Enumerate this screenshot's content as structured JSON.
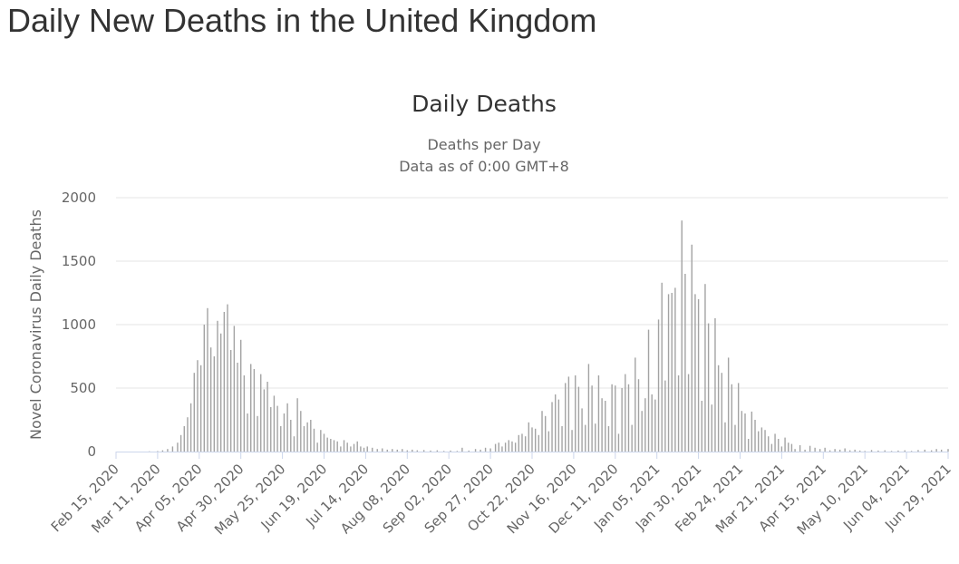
{
  "page": {
    "heading": "Daily New Deaths in the United Kingdom"
  },
  "chart_data": {
    "type": "bar",
    "title": "Daily Deaths",
    "subtitle": "Deaths per Day",
    "subtitle2": "Data as of 0:00 GMT+8",
    "xlabel": "",
    "ylabel": "Novel Coronavirus Daily Deaths",
    "ylim": [
      0,
      2000
    ],
    "yticks": [
      0,
      500,
      1000,
      1500,
      2000
    ],
    "grid": true,
    "legend": "none",
    "bar_color": "#a3a3a3",
    "grid_color": "#e6e6e6",
    "axis_color": "#ccd6eb",
    "x_start": "2020-02-15",
    "x_end": "2021-06-29",
    "xtick_labels": [
      "Feb 15, 2020",
      "Mar 11, 2020",
      "Apr 05, 2020",
      "Apr 30, 2020",
      "May 25, 2020",
      "Jun 19, 2020",
      "Jul 14, 2020",
      "Aug 08, 2020",
      "Sep 02, 2020",
      "Sep 27, 2020",
      "Oct 22, 2020",
      "Nov 16, 2020",
      "Dec 11, 2020",
      "Jan 05, 2021",
      "Jan 30, 2021",
      "Feb 24, 2021",
      "Mar 21, 2021",
      "Apr 15, 2021",
      "May 10, 2021",
      "Jun 04, 2021",
      "Jun 29, 2021"
    ],
    "series": [
      {
        "values": [
          {
            "date": "2020-02-15",
            "value": 0
          },
          {
            "date": "2020-02-20",
            "value": 0
          },
          {
            "date": "2020-02-25",
            "value": 0
          },
          {
            "date": "2020-03-01",
            "value": 0
          },
          {
            "date": "2020-03-06",
            "value": 2
          },
          {
            "date": "2020-03-11",
            "value": 4
          },
          {
            "date": "2020-03-14",
            "value": 10
          },
          {
            "date": "2020-03-17",
            "value": 20
          },
          {
            "date": "2020-03-20",
            "value": 40
          },
          {
            "date": "2020-03-23",
            "value": 70
          },
          {
            "date": "2020-03-25",
            "value": 130
          },
          {
            "date": "2020-03-27",
            "value": 200
          },
          {
            "date": "2020-03-29",
            "value": 270
          },
          {
            "date": "2020-03-31",
            "value": 380
          },
          {
            "date": "2020-04-02",
            "value": 620
          },
          {
            "date": "2020-04-04",
            "value": 720
          },
          {
            "date": "2020-04-06",
            "value": 680
          },
          {
            "date": "2020-04-08",
            "value": 1000
          },
          {
            "date": "2020-04-10",
            "value": 1130
          },
          {
            "date": "2020-04-12",
            "value": 820
          },
          {
            "date": "2020-04-14",
            "value": 750
          },
          {
            "date": "2020-04-16",
            "value": 1030
          },
          {
            "date": "2020-04-18",
            "value": 930
          },
          {
            "date": "2020-04-20",
            "value": 1100
          },
          {
            "date": "2020-04-22",
            "value": 1160
          },
          {
            "date": "2020-04-24",
            "value": 800
          },
          {
            "date": "2020-04-26",
            "value": 990
          },
          {
            "date": "2020-04-28",
            "value": 700
          },
          {
            "date": "2020-04-30",
            "value": 880
          },
          {
            "date": "2020-05-02",
            "value": 600
          },
          {
            "date": "2020-05-04",
            "value": 300
          },
          {
            "date": "2020-05-06",
            "value": 690
          },
          {
            "date": "2020-05-08",
            "value": 650
          },
          {
            "date": "2020-05-10",
            "value": 280
          },
          {
            "date": "2020-05-12",
            "value": 610
          },
          {
            "date": "2020-05-14",
            "value": 490
          },
          {
            "date": "2020-05-16",
            "value": 550
          },
          {
            "date": "2020-05-18",
            "value": 350
          },
          {
            "date": "2020-05-20",
            "value": 440
          },
          {
            "date": "2020-05-22",
            "value": 360
          },
          {
            "date": "2020-05-24",
            "value": 200
          },
          {
            "date": "2020-05-26",
            "value": 300
          },
          {
            "date": "2020-05-28",
            "value": 380
          },
          {
            "date": "2020-05-30",
            "value": 250
          },
          {
            "date": "2020-06-01",
            "value": 120
          },
          {
            "date": "2020-06-03",
            "value": 420
          },
          {
            "date": "2020-06-05",
            "value": 320
          },
          {
            "date": "2020-06-07",
            "value": 200
          },
          {
            "date": "2020-06-09",
            "value": 230
          },
          {
            "date": "2020-06-11",
            "value": 250
          },
          {
            "date": "2020-06-13",
            "value": 180
          },
          {
            "date": "2020-06-15",
            "value": 70
          },
          {
            "date": "2020-06-17",
            "value": 170
          },
          {
            "date": "2020-06-19",
            "value": 140
          },
          {
            "date": "2020-06-21",
            "value": 110
          },
          {
            "date": "2020-06-23",
            "value": 100
          },
          {
            "date": "2020-06-25",
            "value": 90
          },
          {
            "date": "2020-06-27",
            "value": 80
          },
          {
            "date": "2020-06-29",
            "value": 40
          },
          {
            "date": "2020-07-01",
            "value": 90
          },
          {
            "date": "2020-07-03",
            "value": 70
          },
          {
            "date": "2020-07-05",
            "value": 40
          },
          {
            "date": "2020-07-07",
            "value": 60
          },
          {
            "date": "2020-07-09",
            "value": 80
          },
          {
            "date": "2020-07-11",
            "value": 40
          },
          {
            "date": "2020-07-13",
            "value": 30
          },
          {
            "date": "2020-07-15",
            "value": 40
          },
          {
            "date": "2020-07-18",
            "value": 30
          },
          {
            "date": "2020-07-21",
            "value": 20
          },
          {
            "date": "2020-07-24",
            "value": 25
          },
          {
            "date": "2020-07-27",
            "value": 15
          },
          {
            "date": "2020-07-30",
            "value": 20
          },
          {
            "date": "2020-08-02",
            "value": 15
          },
          {
            "date": "2020-08-05",
            "value": 20
          },
          {
            "date": "2020-08-08",
            "value": 10
          },
          {
            "date": "2020-08-11",
            "value": 15
          },
          {
            "date": "2020-08-14",
            "value": 10
          },
          {
            "date": "2020-08-18",
            "value": 12
          },
          {
            "date": "2020-08-22",
            "value": 8
          },
          {
            "date": "2020-08-26",
            "value": 10
          },
          {
            "date": "2020-08-30",
            "value": 5
          },
          {
            "date": "2020-09-03",
            "value": 8
          },
          {
            "date": "2020-09-07",
            "value": 5
          },
          {
            "date": "2020-09-10",
            "value": 30
          },
          {
            "date": "2020-09-14",
            "value": 8
          },
          {
            "date": "2020-09-18",
            "value": 20
          },
          {
            "date": "2020-09-21",
            "value": 15
          },
          {
            "date": "2020-09-24",
            "value": 30
          },
          {
            "date": "2020-09-27",
            "value": 25
          },
          {
            "date": "2020-09-30",
            "value": 60
          },
          {
            "date": "2020-10-02",
            "value": 70
          },
          {
            "date": "2020-10-04",
            "value": 40
          },
          {
            "date": "2020-10-06",
            "value": 70
          },
          {
            "date": "2020-10-08",
            "value": 90
          },
          {
            "date": "2020-10-10",
            "value": 80
          },
          {
            "date": "2020-10-12",
            "value": 70
          },
          {
            "date": "2020-10-14",
            "value": 130
          },
          {
            "date": "2020-10-16",
            "value": 140
          },
          {
            "date": "2020-10-18",
            "value": 120
          },
          {
            "date": "2020-10-20",
            "value": 230
          },
          {
            "date": "2020-10-22",
            "value": 190
          },
          {
            "date": "2020-10-24",
            "value": 180
          },
          {
            "date": "2020-10-26",
            "value": 130
          },
          {
            "date": "2020-10-28",
            "value": 320
          },
          {
            "date": "2020-10-30",
            "value": 280
          },
          {
            "date": "2020-11-01",
            "value": 160
          },
          {
            "date": "2020-11-03",
            "value": 390
          },
          {
            "date": "2020-11-05",
            "value": 450
          },
          {
            "date": "2020-11-07",
            "value": 410
          },
          {
            "date": "2020-11-09",
            "value": 200
          },
          {
            "date": "2020-11-11",
            "value": 540
          },
          {
            "date": "2020-11-13",
            "value": 590
          },
          {
            "date": "2020-11-15",
            "value": 170
          },
          {
            "date": "2020-11-17",
            "value": 600
          },
          {
            "date": "2020-11-19",
            "value": 510
          },
          {
            "date": "2020-11-21",
            "value": 340
          },
          {
            "date": "2020-11-23",
            "value": 210
          },
          {
            "date": "2020-11-25",
            "value": 690
          },
          {
            "date": "2020-11-27",
            "value": 520
          },
          {
            "date": "2020-11-29",
            "value": 220
          },
          {
            "date": "2020-12-01",
            "value": 600
          },
          {
            "date": "2020-12-03",
            "value": 420
          },
          {
            "date": "2020-12-05",
            "value": 400
          },
          {
            "date": "2020-12-07",
            "value": 200
          },
          {
            "date": "2020-12-09",
            "value": 530
          },
          {
            "date": "2020-12-11",
            "value": 520
          },
          {
            "date": "2020-12-13",
            "value": 140
          },
          {
            "date": "2020-12-15",
            "value": 500
          },
          {
            "date": "2020-12-17",
            "value": 610
          },
          {
            "date": "2020-12-19",
            "value": 530
          },
          {
            "date": "2020-12-21",
            "value": 210
          },
          {
            "date": "2020-12-23",
            "value": 740
          },
          {
            "date": "2020-12-25",
            "value": 570
          },
          {
            "date": "2020-12-27",
            "value": 320
          },
          {
            "date": "2020-12-29",
            "value": 420
          },
          {
            "date": "2020-12-31",
            "value": 960
          },
          {
            "date": "2021-01-02",
            "value": 450
          },
          {
            "date": "2021-01-04",
            "value": 410
          },
          {
            "date": "2021-01-06",
            "value": 1040
          },
          {
            "date": "2021-01-08",
            "value": 1330
          },
          {
            "date": "2021-01-10",
            "value": 560
          },
          {
            "date": "2021-01-12",
            "value": 1240
          },
          {
            "date": "2021-01-14",
            "value": 1250
          },
          {
            "date": "2021-01-16",
            "value": 1290
          },
          {
            "date": "2021-01-18",
            "value": 600
          },
          {
            "date": "2021-01-20",
            "value": 1820
          },
          {
            "date": "2021-01-22",
            "value": 1400
          },
          {
            "date": "2021-01-24",
            "value": 610
          },
          {
            "date": "2021-01-26",
            "value": 1630
          },
          {
            "date": "2021-01-28",
            "value": 1240
          },
          {
            "date": "2021-01-30",
            "value": 1200
          },
          {
            "date": "2021-02-01",
            "value": 400
          },
          {
            "date": "2021-02-03",
            "value": 1320
          },
          {
            "date": "2021-02-05",
            "value": 1010
          },
          {
            "date": "2021-02-07",
            "value": 370
          },
          {
            "date": "2021-02-09",
            "value": 1050
          },
          {
            "date": "2021-02-11",
            "value": 680
          },
          {
            "date": "2021-02-13",
            "value": 620
          },
          {
            "date": "2021-02-15",
            "value": 230
          },
          {
            "date": "2021-02-17",
            "value": 740
          },
          {
            "date": "2021-02-19",
            "value": 530
          },
          {
            "date": "2021-02-21",
            "value": 210
          },
          {
            "date": "2021-02-23",
            "value": 540
          },
          {
            "date": "2021-02-25",
            "value": 320
          },
          {
            "date": "2021-02-27",
            "value": 300
          },
          {
            "date": "2021-03-01",
            "value": 100
          },
          {
            "date": "2021-03-03",
            "value": 315
          },
          {
            "date": "2021-03-05",
            "value": 250
          },
          {
            "date": "2021-03-07",
            "value": 160
          },
          {
            "date": "2021-03-09",
            "value": 190
          },
          {
            "date": "2021-03-11",
            "value": 170
          },
          {
            "date": "2021-03-13",
            "value": 120
          },
          {
            "date": "2021-03-15",
            "value": 60
          },
          {
            "date": "2021-03-17",
            "value": 140
          },
          {
            "date": "2021-03-19",
            "value": 100
          },
          {
            "date": "2021-03-21",
            "value": 40
          },
          {
            "date": "2021-03-23",
            "value": 110
          },
          {
            "date": "2021-03-25",
            "value": 70
          },
          {
            "date": "2021-03-27",
            "value": 60
          },
          {
            "date": "2021-03-29",
            "value": 20
          },
          {
            "date": "2021-04-01",
            "value": 50
          },
          {
            "date": "2021-04-04",
            "value": 15
          },
          {
            "date": "2021-04-07",
            "value": 45
          },
          {
            "date": "2021-04-10",
            "value": 30
          },
          {
            "date": "2021-04-13",
            "value": 20
          },
          {
            "date": "2021-04-16",
            "value": 30
          },
          {
            "date": "2021-04-19",
            "value": 10
          },
          {
            "date": "2021-04-22",
            "value": 20
          },
          {
            "date": "2021-04-25",
            "value": 15
          },
          {
            "date": "2021-04-28",
            "value": 25
          },
          {
            "date": "2021-05-01",
            "value": 10
          },
          {
            "date": "2021-05-04",
            "value": 15
          },
          {
            "date": "2021-05-07",
            "value": 8
          },
          {
            "date": "2021-05-10",
            "value": 5
          },
          {
            "date": "2021-05-14",
            "value": 12
          },
          {
            "date": "2021-05-18",
            "value": 8
          },
          {
            "date": "2021-05-22",
            "value": 10
          },
          {
            "date": "2021-05-26",
            "value": 5
          },
          {
            "date": "2021-05-30",
            "value": 8
          },
          {
            "date": "2021-06-03",
            "value": 10
          },
          {
            "date": "2021-06-07",
            "value": 5
          },
          {
            "date": "2021-06-11",
            "value": 12
          },
          {
            "date": "2021-06-15",
            "value": 15
          },
          {
            "date": "2021-06-19",
            "value": 10
          },
          {
            "date": "2021-06-22",
            "value": 20
          },
          {
            "date": "2021-06-25",
            "value": 15
          },
          {
            "date": "2021-06-29",
            "value": 20
          }
        ]
      }
    ]
  }
}
